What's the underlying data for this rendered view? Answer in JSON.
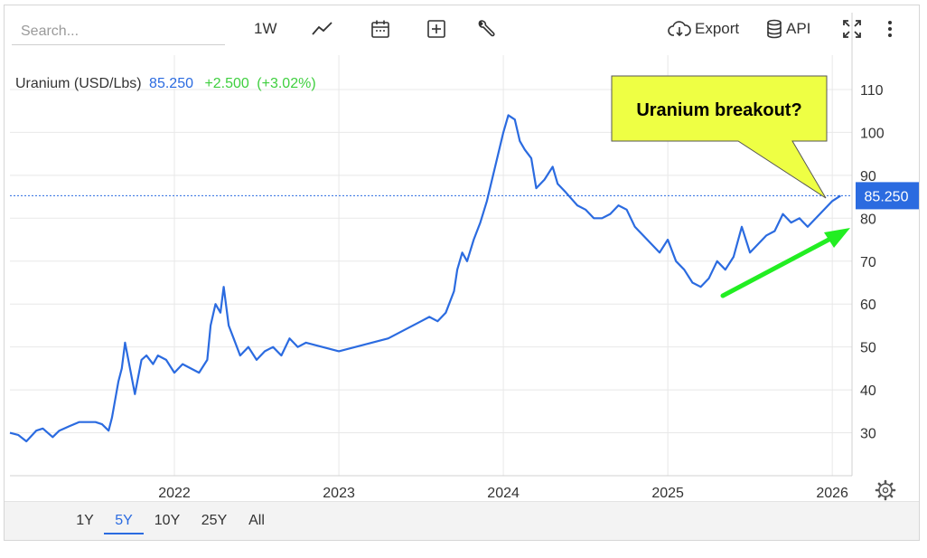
{
  "toolbar": {
    "search_placeholder": "Search...",
    "period_label": "1W",
    "chart_type_icon": "line-chart-icon",
    "calendar_icon": "calendar-icon",
    "compare_icon": "plus-box-icon",
    "tools_icon": "wrench-icon",
    "export_label": "Export",
    "api_label": "API",
    "fullscreen_icon": "fullscreen-icon",
    "more_icon": "more-vertical-icon"
  },
  "legend": {
    "name": "Uranium (USD/Lbs)",
    "price": "85.250",
    "change": "+2.500",
    "change_pct": "(+3.02%)"
  },
  "annotation": {
    "text": "Uranium breakout?",
    "fill_color": "#eeff44",
    "arrow_color": "#22ee22"
  },
  "price_tag": "85.250",
  "ranges": [
    "1Y",
    "5Y",
    "10Y",
    "25Y",
    "All"
  ],
  "active_range": "5Y",
  "colors": {
    "line": "#2b6be0",
    "change": "#3fcf3f",
    "grid": "#e8e8e8"
  },
  "chart_data": {
    "type": "line",
    "series": [
      {
        "x": [
          2021.0,
          2021.05,
          2021.1,
          2021.16,
          2021.2,
          2021.26,
          2021.3,
          2021.36,
          2021.42,
          2021.47,
          2021.52,
          2021.56,
          2021.6,
          2021.62,
          2021.66,
          2021.68,
          2021.7,
          2021.73,
          2021.76,
          2021.8,
          2021.83,
          2021.87,
          2021.9,
          2021.95,
          2022.0,
          2022.05,
          2022.1,
          2022.15,
          2022.2,
          2022.22,
          2022.25,
          2022.28,
          2022.3,
          2022.33,
          2022.36,
          2022.4,
          2022.45,
          2022.5,
          2022.55,
          2022.6,
          2022.65,
          2022.7,
          2022.75,
          2022.8,
          2022.9,
          2023.0,
          2023.1,
          2023.2,
          2023.3,
          2023.4,
          2023.5,
          2023.55,
          2023.6,
          2023.65,
          2023.7,
          2023.72,
          2023.75,
          2023.78,
          2023.82,
          2023.86,
          2023.9,
          2023.95,
          2024.0,
          2024.03,
          2024.07,
          2024.1,
          2024.13,
          2024.17,
          2024.2,
          2024.25,
          2024.3,
          2024.33,
          2024.38,
          2024.45,
          2024.5,
          2024.55,
          2024.6,
          2024.65,
          2024.7,
          2024.75,
          2024.8,
          2024.85,
          2024.9,
          2024.95,
          2025.0,
          2025.05,
          2025.1,
          2025.15,
          2025.2,
          2025.25,
          2025.3,
          2025.35,
          2025.4,
          2025.45,
          2025.5,
          2025.55,
          2025.6,
          2025.65,
          2025.7,
          2025.75,
          2025.8,
          2025.85,
          2025.9,
          2025.95,
          2026.0,
          2026.05
        ],
        "y": [
          30,
          29.5,
          28,
          30.5,
          31,
          29,
          30.5,
          31.5,
          32.5,
          32.5,
          32.5,
          32,
          30.5,
          33.5,
          42,
          45,
          51,
          45,
          39,
          47,
          48,
          46,
          48,
          47,
          44,
          46,
          45,
          44,
          47,
          55,
          60,
          58,
          64,
          55,
          52,
          48,
          50,
          47,
          49,
          50,
          48,
          52,
          50,
          51,
          50,
          49,
          50,
          51,
          52,
          54,
          56,
          57,
          56,
          58,
          63,
          68,
          72,
          70,
          75,
          79,
          84,
          92,
          100,
          104,
          103,
          98,
          96,
          94,
          87,
          89,
          92,
          88,
          86,
          83,
          82,
          80,
          80,
          81,
          83,
          82,
          78,
          76,
          74,
          72,
          75,
          70,
          68,
          65,
          64,
          66,
          70,
          68,
          71,
          78,
          72,
          74,
          76,
          77,
          81,
          79,
          80,
          78,
          80,
          82,
          84,
          85.25
        ]
      }
    ],
    "xlim": [
      2021.0,
      2026.12
    ],
    "ylim": [
      20,
      118
    ],
    "x_ticks": [
      2022,
      2023,
      2024,
      2025,
      2026
    ],
    "x_tick_labels": [
      "2022",
      "2023",
      "2024",
      "2025",
      "2026"
    ],
    "y_ticks": [
      30,
      40,
      50,
      60,
      70,
      80,
      90,
      100,
      110
    ],
    "y_tick_labels": [
      "30",
      "40",
      "50",
      "60",
      "70",
      "80",
      "90",
      "100",
      "110"
    ],
    "last_value": 85.25,
    "grid": true,
    "title": "",
    "xlabel": "",
    "ylabel": ""
  }
}
